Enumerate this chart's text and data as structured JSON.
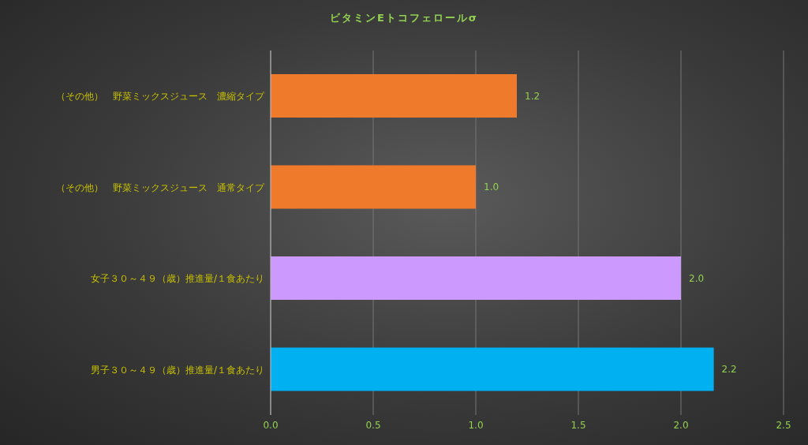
{
  "chart_data": {
    "type": "bar",
    "orientation": "horizontal",
    "title": "ビタミンEトコフェロールσ",
    "categories": [
      "（その他）　野菜ミックスジュース　濃縮タイプ",
      "（その他）　野菜ミックスジュース　通常タイプ",
      "女子３０～４９（歳）推進量/１食あたり",
      "男子３０～４９（歳）推進量/１食あたり"
    ],
    "values": [
      1.2,
      1.0,
      2.0,
      2.16
    ],
    "colors": [
      "#f07a2c",
      "#f07a2c",
      "#cc99ff",
      "#00b0f0"
    ],
    "value_labels": [
      "1.2",
      "1.0",
      "2.0",
      "2.2"
    ],
    "xlim": [
      0,
      2.5
    ],
    "xticks": [
      {
        "value": 0,
        "label": "0.0"
      },
      {
        "value": 0.5,
        "label": "0.5"
      },
      {
        "value": 1,
        "label": "1.0"
      },
      {
        "value": 1.5,
        "label": "1.5"
      },
      {
        "value": 2,
        "label": "2.0"
      },
      {
        "value": 2.5,
        "label": "2.5"
      }
    ],
    "grid": "x"
  }
}
